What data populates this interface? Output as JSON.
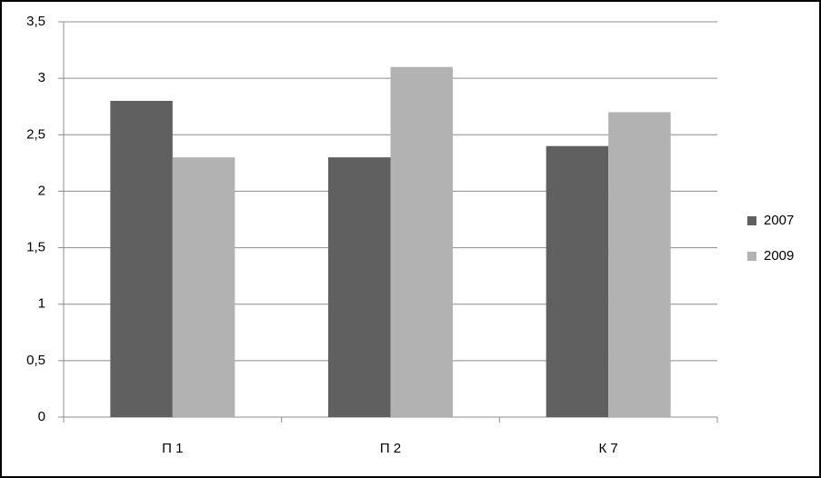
{
  "chart_data": {
    "type": "bar",
    "categories": [
      "П 1",
      "П 2",
      "К 7"
    ],
    "series": [
      {
        "name": "2007",
        "color": "#606060",
        "values": [
          2.8,
          2.3,
          2.4
        ]
      },
      {
        "name": "2009",
        "color": "#b2b2b2",
        "values": [
          2.3,
          3.1,
          2.7
        ]
      }
    ],
    "ylim": [
      0,
      3.5
    ],
    "yticks": [
      0,
      {
        "value": 0.5,
        "label": "0,5"
      },
      1,
      {
        "value": 1.5,
        "label": "1,5"
      },
      2,
      {
        "value": 2.5,
        "label": "2,5"
      },
      3,
      {
        "value": 3.5,
        "label": "3,5"
      }
    ],
    "grid": true,
    "legend": "right"
  }
}
